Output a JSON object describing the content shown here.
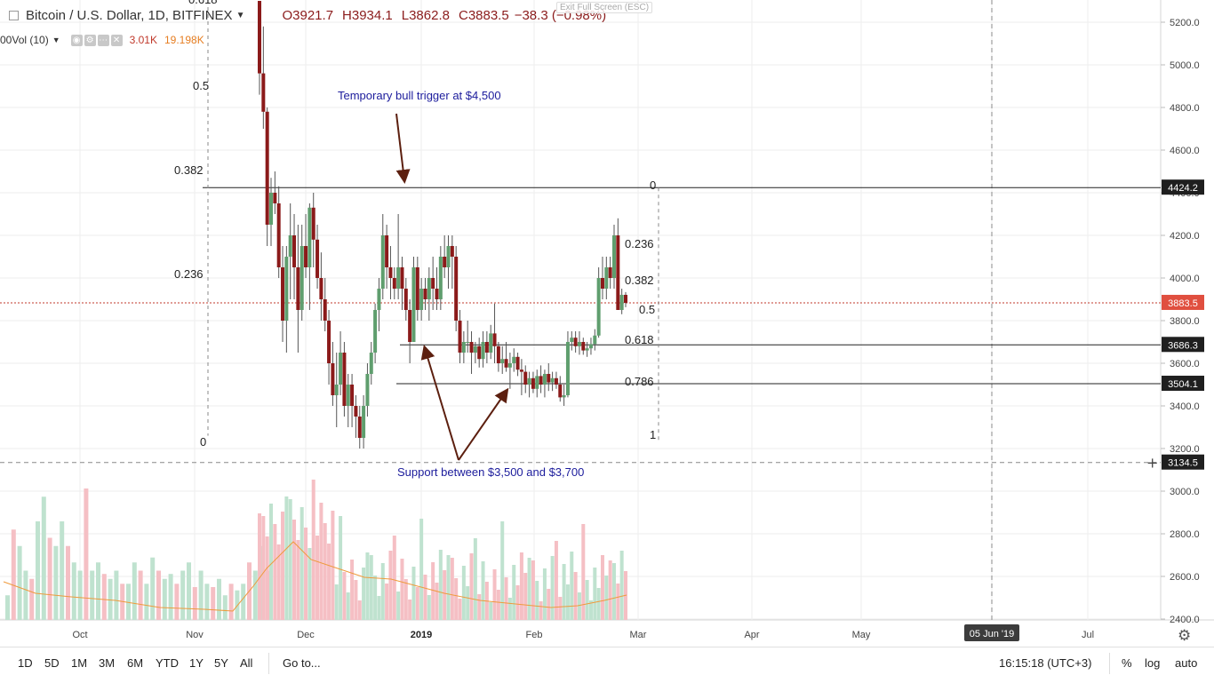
{
  "symbol": {
    "title": "Bitcoin / U.S. Dollar, 1D, BITFINEX",
    "open": "O3921.7",
    "high": "H3934.1",
    "low": "L3862.8",
    "close": "C3883.5",
    "change": "−38.3 (−0.98%)"
  },
  "volume": {
    "label": "00Vol (10)",
    "v1": "3.01K",
    "v2": "19.198K"
  },
  "exit_fullscreen": "Exit Full Screen (ESC)",
  "toolbar": {
    "timeframes": [
      "1D",
      "5D",
      "1M",
      "3M",
      "6M",
      "YTD",
      "1Y",
      "5Y",
      "All"
    ],
    "goto": "Go to...",
    "clock": "16:15:18 (UTC+3)",
    "percent": "%",
    "log": "log",
    "auto": "auto"
  },
  "colors": {
    "up": "#5f9e6e",
    "down": "#8b1a1a",
    "vol_up": "#bfe2cf",
    "vol_down": "#f5bfc4",
    "ma": "#ef9a3c",
    "annotation": "#1c1c9c",
    "arrow": "#5c1f0f"
  },
  "chart_data": {
    "type": "candlestick",
    "title": "Bitcoin / U.S. Dollar, 1D, BITFINEX",
    "yaxis": {
      "ticks": [
        2400,
        2600,
        2800,
        3000,
        3200,
        3400,
        3600,
        3800,
        4000,
        4200,
        4400,
        4600,
        4800,
        5000,
        5200
      ],
      "range": [
        2340,
        5300
      ]
    },
    "xaxis": {
      "ticks": [
        "Oct",
        "Nov",
        "Dec",
        "2019",
        "Feb",
        "Mar",
        "Apr",
        "May",
        "05 Jun '19",
        "Jul"
      ]
    },
    "price_labels": [
      {
        "text": "4424.2",
        "value": 4424.2,
        "style": "dark"
      },
      {
        "text": "3883.5",
        "value": 3883.5,
        "style": "red"
      },
      {
        "text": "3686.3",
        "value": 3686.3,
        "style": "dark"
      },
      {
        "text": "3504.1",
        "value": 3504.1,
        "style": "dark"
      },
      {
        "text": "3134.5",
        "value": 3134.5,
        "style": "dark"
      }
    ],
    "horizontal_lines": [
      {
        "value": 4424.2,
        "from": "Dec",
        "to": "Jul",
        "style": "solid"
      },
      {
        "value": 3686.3,
        "from": "Jan",
        "to": "Jul",
        "style": "solid"
      },
      {
        "value": 3504.1,
        "from": "Jan",
        "to": "Jul",
        "style": "solid"
      },
      {
        "value": 3883.5,
        "style": "dotted-red"
      },
      {
        "value": 3134.5,
        "style": "dashed"
      }
    ],
    "fib_left": [
      {
        "text": "0.618"
      },
      {
        "text": "0.5"
      },
      {
        "text": "0.382"
      },
      {
        "text": "0.236"
      },
      {
        "text": "0"
      }
    ],
    "fib_right": [
      {
        "text": "0"
      },
      {
        "text": "0.236"
      },
      {
        "text": "0.382"
      },
      {
        "text": "0.5"
      },
      {
        "text": "0.618"
      },
      {
        "text": "0.786"
      },
      {
        "text": "1"
      }
    ],
    "annotations": [
      {
        "text": "Temporary bull trigger at $4,500"
      },
      {
        "text": "Support between $3,500 and $3,700"
      }
    ],
    "candles": [
      [
        5300,
        5300,
        4860,
        4960
      ],
      [
        4960,
        5180,
        4700,
        4780
      ],
      [
        4780,
        4800,
        4150,
        4250
      ],
      [
        4250,
        4470,
        4150,
        4400
      ],
      [
        4400,
        4500,
        4300,
        4350
      ],
      [
        4350,
        4430,
        4000,
        4050
      ],
      [
        4050,
        4150,
        3700,
        3800
      ],
      [
        3800,
        4150,
        3650,
        4100
      ],
      [
        4100,
        4350,
        3900,
        4200
      ],
      [
        4200,
        4300,
        3900,
        4050
      ],
      [
        4050,
        4250,
        3650,
        3850
      ],
      [
        3850,
        4250,
        3800,
        4150
      ],
      [
        4150,
        4300,
        4000,
        4050
      ],
      [
        4050,
        4350,
        3850,
        4330
      ],
      [
        4330,
        4400,
        4050,
        4180
      ],
      [
        4180,
        4250,
        3950,
        4000
      ],
      [
        4000,
        4120,
        3800,
        3900
      ],
      [
        3900,
        4000,
        3750,
        3800
      ],
      [
        3800,
        3850,
        3500,
        3600
      ],
      [
        3600,
        3700,
        3400,
        3450
      ],
      [
        3450,
        3650,
        3300,
        3500
      ],
      [
        3500,
        3750,
        3450,
        3650
      ],
      [
        3650,
        3700,
        3350,
        3400
      ],
      [
        3400,
        3550,
        3300,
        3500
      ],
      [
        3500,
        3550,
        3300,
        3400
      ],
      [
        3400,
        3450,
        3250,
        3350
      ],
      [
        3350,
        3400,
        3200,
        3250
      ],
      [
        3250,
        3450,
        3200,
        3400
      ],
      [
        3400,
        3600,
        3350,
        3550
      ],
      [
        3550,
        3700,
        3500,
        3650
      ],
      [
        3650,
        3880,
        3600,
        3850
      ],
      [
        3850,
        4000,
        3750,
        3950
      ],
      [
        3950,
        4300,
        3900,
        4200
      ],
      [
        4200,
        4250,
        3950,
        4050
      ],
      [
        4050,
        4150,
        3900,
        4000
      ],
      [
        4000,
        4050,
        3900,
        3950
      ],
      [
        3950,
        4300,
        3900,
        4050
      ],
      [
        4050,
        4100,
        3850,
        3950
      ],
      [
        3950,
        4000,
        3800,
        3850
      ],
      [
        3850,
        3900,
        3600,
        3700
      ],
      [
        3700,
        4100,
        3700,
        4050
      ],
      [
        4050,
        4100,
        3800,
        3850
      ],
      [
        3850,
        4000,
        3800,
        3950
      ],
      [
        3950,
        4000,
        3850,
        3900
      ],
      [
        3900,
        4050,
        3800,
        4000
      ],
      [
        4000,
        4100,
        3850,
        3950
      ],
      [
        3950,
        4050,
        3850,
        3900
      ],
      [
        3900,
        4150,
        3850,
        4100
      ],
      [
        4100,
        4200,
        4000,
        4050
      ],
      [
        4050,
        4200,
        3950,
        4150
      ],
      [
        4150,
        4200,
        3950,
        4100
      ],
      [
        4100,
        4150,
        3750,
        3800
      ],
      [
        3800,
        3850,
        3600,
        3650
      ],
      [
        3650,
        3750,
        3600,
        3700
      ],
      [
        3700,
        3800,
        3650,
        3700
      ],
      [
        3700,
        3750,
        3550,
        3650
      ],
      [
        3650,
        3700,
        3600,
        3680
      ],
      [
        3680,
        3720,
        3580,
        3620
      ],
      [
        3620,
        3750,
        3580,
        3700
      ],
      [
        3700,
        3750,
        3600,
        3650
      ],
      [
        3650,
        3780,
        3620,
        3740
      ],
      [
        3740,
        3880,
        3600,
        3680
      ],
      [
        3680,
        3700,
        3560,
        3600
      ],
      [
        3600,
        3680,
        3550,
        3620
      ],
      [
        3620,
        3700,
        3560,
        3580
      ],
      [
        3580,
        3650,
        3480,
        3600
      ],
      [
        3600,
        3670,
        3560,
        3630
      ],
      [
        3630,
        3650,
        3540,
        3570
      ],
      [
        3570,
        3620,
        3450,
        3560
      ],
      [
        3560,
        3590,
        3460,
        3500
      ],
      [
        3500,
        3560,
        3440,
        3530
      ],
      [
        3530,
        3560,
        3460,
        3480
      ],
      [
        3480,
        3570,
        3440,
        3540
      ],
      [
        3540,
        3590,
        3460,
        3500
      ],
      [
        3500,
        3570,
        3440,
        3550
      ],
      [
        3550,
        3600,
        3470,
        3510
      ],
      [
        3510,
        3560,
        3470,
        3530
      ],
      [
        3530,
        3560,
        3480,
        3500
      ],
      [
        3500,
        3540,
        3420,
        3440
      ],
      [
        3440,
        3500,
        3400,
        3450
      ],
      [
        3450,
        3750,
        3440,
        3700
      ],
      [
        3700,
        3750,
        3660,
        3720
      ],
      [
        3720,
        3750,
        3650,
        3680
      ],
      [
        3680,
        3750,
        3640,
        3700
      ],
      [
        3700,
        3720,
        3640,
        3660
      ],
      [
        3660,
        3700,
        3630,
        3670
      ],
      [
        3670,
        3720,
        3640,
        3690
      ],
      [
        3690,
        3760,
        3660,
        3730
      ],
      [
        3730,
        4050,
        3720,
        4000
      ],
      [
        4000,
        4100,
        3900,
        3950
      ],
      [
        3950,
        4100,
        3900,
        4050
      ],
      [
        4050,
        4100,
        3950,
        4000
      ],
      [
        4000,
        4250,
        3950,
        4200
      ],
      [
        4200,
        4280,
        3850,
        3850
      ],
      [
        3850,
        3950,
        3830,
        3921
      ],
      [
        3921,
        3934,
        3863,
        3883
      ]
    ],
    "volumes": [
      0.15,
      0.55,
      0.45,
      0.3,
      0.25,
      0.6,
      0.75,
      0.5,
      0.45,
      0.6,
      0.45,
      0.35,
      0.3,
      0.8,
      0.3,
      0.35,
      0.28,
      0.25,
      0.3,
      0.22,
      0.22,
      0.35,
      0.3,
      0.22,
      0.38,
      0.3,
      0.25,
      0.28,
      0.22,
      0.3,
      0.35,
      0.2,
      0.3,
      0.22,
      0.2,
      0.25,
      0.15,
      0.22,
      0.18,
      0.22,
      0.35,
      0.3,
      0.45,
      0.3
    ]
  }
}
